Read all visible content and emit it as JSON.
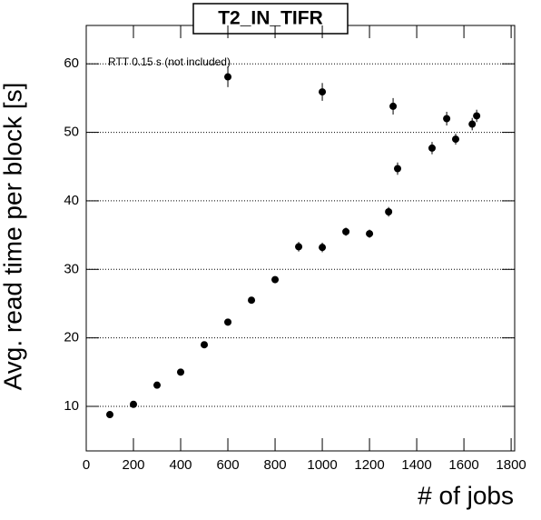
{
  "chart_data": {
    "type": "scatter",
    "title": "T2_IN_TIFR",
    "annotation": "RTT 0.15 s (not included)",
    "x_label": "# of jobs",
    "y_label": "Avg. read time per block [s]",
    "x": [
      100,
      200,
      300,
      400,
      500,
      600,
      600,
      700,
      800,
      900,
      1000,
      1000,
      1100,
      1200,
      1281,
      1300,
      1319,
      1465,
      1527,
      1565,
      1635,
      1654
    ],
    "values": [
      8.8,
      10.3,
      13.1,
      15.0,
      19.0,
      22.3,
      58.1,
      25.5,
      28.5,
      33.3,
      33.2,
      55.9,
      35.5,
      35.2,
      38.4,
      53.8,
      44.7,
      47.7,
      52.0,
      49.0,
      51.2,
      52.4
    ],
    "errors": [
      0.4,
      0.4,
      0.4,
      0.4,
      0.4,
      0.5,
      1.5,
      0.5,
      0.5,
      0.7,
      0.7,
      1.3,
      0.6,
      0.6,
      0.7,
      1.2,
      0.9,
      0.9,
      1.0,
      0.8,
      0.9,
      0.9
    ],
    "color": "#000000",
    "xlim": [
      0,
      1815
    ],
    "xticks": [
      0,
      200,
      400,
      600,
      800,
      1000,
      1200,
      1400,
      1600,
      1800
    ],
    "ylim": [
      3.5,
      65.6
    ],
    "yticks": [
      10,
      20,
      30,
      40,
      50,
      60
    ],
    "grid": true
  }
}
